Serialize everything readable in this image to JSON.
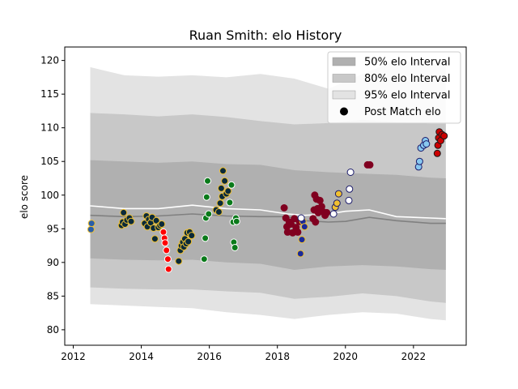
{
  "chart_data": {
    "type": "scatter",
    "title": "Ruan Smith: elo History",
    "xlabel": "",
    "ylabel": "elo score",
    "xlim": [
      2011.75,
      2023.55
    ],
    "ylim": [
      77.7,
      122.0
    ],
    "xticks": [
      2012,
      2014,
      2016,
      2018,
      2020,
      2022
    ],
    "yticks": [
      80,
      85,
      90,
      95,
      100,
      105,
      110,
      115,
      120
    ],
    "grid": false,
    "legend_position": "top-right",
    "legend": [
      {
        "label": "50% elo Interval",
        "kind": "band",
        "color": "#b0b0b0"
      },
      {
        "label": "80% elo Interval",
        "kind": "band",
        "color": "#c8c8c8"
      },
      {
        "label": "95% elo Interval",
        "kind": "band",
        "color": "#e3e3e3"
      },
      {
        "label": "Post Match elo",
        "kind": "marker",
        "color": "#000000"
      }
    ],
    "bands": {
      "x": [
        2012.5,
        2013.5,
        2014.5,
        2015.5,
        2016.5,
        2017.5,
        2018.5,
        2019.5,
        2020.5,
        2021.5,
        2022.5,
        2022.95
      ],
      "p95_upper": [
        119.0,
        117.8,
        117.6,
        117.8,
        117.5,
        118.0,
        117.3,
        115.8,
        118.0,
        120.0,
        119.5,
        119.8
      ],
      "p95_lower": [
        83.8,
        83.6,
        83.4,
        83.2,
        82.6,
        82.2,
        81.6,
        82.2,
        82.6,
        82.4,
        81.6,
        81.4
      ],
      "p80_upper": [
        112.2,
        112.0,
        111.7,
        112.0,
        111.6,
        111.0,
        110.5,
        110.7,
        111.2,
        110.8,
        110.6,
        110.6
      ],
      "p80_lower": [
        86.3,
        86.1,
        86.0,
        86.0,
        85.7,
        85.5,
        84.6,
        84.9,
        85.4,
        85.0,
        84.2,
        84.0
      ],
      "p50_upper": [
        105.2,
        105.0,
        104.8,
        105.0,
        104.6,
        104.5,
        103.7,
        103.4,
        103.2,
        103.0,
        102.6,
        102.5
      ],
      "p50_lower": [
        90.6,
        90.4,
        90.3,
        90.4,
        90.0,
        89.8,
        88.9,
        89.4,
        89.6,
        89.4,
        89.0,
        88.9
      ]
    },
    "median_line": {
      "color": "#808080",
      "x": [
        2012.5,
        2013.5,
        2014.5,
        2015.5,
        2016.5,
        2017.5,
        2018.3,
        2018.8,
        2019.5,
        2020.0,
        2020.7,
        2021.5,
        2022.5,
        2022.95
      ],
      "y": [
        97.0,
        96.8,
        96.9,
        97.2,
        96.9,
        96.8,
        96.8,
        96.2,
        96.0,
        96.1,
        96.7,
        96.2,
        95.8,
        95.8
      ]
    },
    "mean_line": {
      "color": "#ffffff",
      "x": [
        2012.5,
        2013.5,
        2014.5,
        2015.5,
        2016.5,
        2017.5,
        2018.3,
        2018.8,
        2019.5,
        2020.0,
        2020.7,
        2021.5,
        2022.5,
        2022.95
      ],
      "y": [
        98.4,
        98.0,
        98.0,
        98.5,
        98.0,
        97.8,
        97.2,
        97.0,
        97.2,
        97.6,
        97.8,
        96.8,
        96.6,
        96.5
      ]
    },
    "series": [
      {
        "fill": "#2a5ea8",
        "edge": "#f0c030",
        "points": [
          [
            2012.52,
            94.9
          ],
          [
            2012.54,
            95.8
          ]
        ]
      },
      {
        "fill": "#0a2a3a",
        "edge": "#f0c030",
        "points": [
          [
            2013.42,
            95.5
          ],
          [
            2013.45,
            96.0
          ],
          [
            2013.48,
            97.4
          ],
          [
            2013.52,
            95.7
          ],
          [
            2013.58,
            96.3
          ],
          [
            2013.65,
            96.6
          ],
          [
            2013.7,
            96.1
          ],
          [
            2014.1,
            95.8
          ],
          [
            2014.15,
            96.9
          ],
          [
            2014.18,
            95.3
          ],
          [
            2014.22,
            96.4
          ],
          [
            2014.28,
            95.9
          ],
          [
            2014.32,
            96.7
          ],
          [
            2014.36,
            95.1
          ],
          [
            2014.4,
            93.5
          ],
          [
            2014.44,
            96.2
          ],
          [
            2014.5,
            95.2
          ],
          [
            2014.55,
            95.5
          ],
          [
            2014.6,
            95.7
          ]
        ]
      },
      {
        "fill": "#ff0000",
        "edge": "#ffffff",
        "points": [
          [
            2014.65,
            94.5
          ],
          [
            2014.68,
            93.6
          ],
          [
            2014.7,
            92.9
          ],
          [
            2014.74,
            91.8
          ],
          [
            2014.78,
            90.5
          ],
          [
            2014.8,
            89.0
          ]
        ]
      },
      {
        "fill": "#0a2a3a",
        "edge": "#f0c030",
        "points": [
          [
            2015.1,
            90.2
          ],
          [
            2015.15,
            91.8
          ],
          [
            2015.18,
            92.5
          ],
          [
            2015.22,
            93.0
          ],
          [
            2015.25,
            92.3
          ],
          [
            2015.28,
            93.5
          ],
          [
            2015.32,
            92.8
          ],
          [
            2015.35,
            94.4
          ],
          [
            2015.38,
            93.1
          ],
          [
            2015.42,
            94.5
          ],
          [
            2015.48,
            94.0
          ],
          [
            2016.2,
            97.8
          ],
          [
            2016.28,
            97.5
          ],
          [
            2016.32,
            98.8
          ],
          [
            2016.35,
            101.0
          ],
          [
            2016.38,
            99.8
          ],
          [
            2016.4,
            103.6
          ],
          [
            2016.45,
            102.1
          ],
          [
            2016.5,
            100.2
          ],
          [
            2016.55,
            100.6
          ]
        ]
      },
      {
        "fill": "#0a7a1a",
        "edge": "#ffffff",
        "points": [
          [
            2015.85,
            90.5
          ],
          [
            2015.88,
            93.6
          ],
          [
            2015.9,
            96.6
          ],
          [
            2015.92,
            99.7
          ],
          [
            2015.95,
            102.1
          ],
          [
            2015.98,
            97.2
          ],
          [
            2016.6,
            98.9
          ],
          [
            2016.65,
            101.5
          ],
          [
            2016.7,
            96.0
          ],
          [
            2016.72,
            93.0
          ],
          [
            2016.75,
            92.2
          ],
          [
            2016.78,
            96.6
          ],
          [
            2016.8,
            96.1
          ]
        ]
      },
      {
        "fill": "#800020",
        "edge": "#800020",
        "points": [
          [
            2018.2,
            98.1
          ],
          [
            2018.25,
            96.6
          ],
          [
            2018.28,
            95.3
          ],
          [
            2018.3,
            94.5
          ],
          [
            2018.35,
            96.0
          ],
          [
            2018.4,
            95.7
          ],
          [
            2018.45,
            94.4
          ],
          [
            2018.5,
            96.5
          ],
          [
            2018.55,
            95.2
          ],
          [
            2018.6,
            94.5
          ],
          [
            2018.65,
            96.1
          ],
          [
            2019.05,
            96.5
          ],
          [
            2019.08,
            97.8
          ],
          [
            2019.1,
            100.0
          ],
          [
            2019.12,
            96.0
          ],
          [
            2019.15,
            99.4
          ],
          [
            2019.18,
            98.0
          ],
          [
            2019.2,
            97.4
          ],
          [
            2019.25,
            99.2
          ],
          [
            2019.3,
            98.3
          ],
          [
            2019.35,
            97.5
          ],
          [
            2019.4,
            97.0
          ],
          [
            2019.45,
            97.4
          ],
          [
            2020.65,
            104.5
          ],
          [
            2020.72,
            104.5
          ]
        ]
      },
      {
        "fill": "#1a2a9a",
        "edge": "#f0c030",
        "points": [
          [
            2018.68,
            91.3
          ],
          [
            2018.72,
            93.4
          ],
          [
            2018.75,
            96.1
          ],
          [
            2018.8,
            95.3
          ]
        ]
      },
      {
        "fill": "#ffffff",
        "edge": "#1a1a6a",
        "points": [
          [
            2018.7,
            96.6
          ],
          [
            2019.65,
            97.2
          ],
          [
            2020.1,
            99.2
          ],
          [
            2020.12,
            100.9
          ],
          [
            2020.15,
            103.4
          ]
        ]
      },
      {
        "fill": "#f0c030",
        "edge": "#1a1a6a",
        "points": [
          [
            2019.7,
            98.2
          ],
          [
            2019.75,
            98.8
          ],
          [
            2019.8,
            100.2
          ]
        ]
      },
      {
        "fill": "#88c8f0",
        "edge": "#1a1a6a",
        "points": [
          [
            2022.15,
            104.2
          ],
          [
            2022.18,
            105.0
          ],
          [
            2022.22,
            107.0
          ],
          [
            2022.3,
            107.4
          ],
          [
            2022.35,
            108.1
          ],
          [
            2022.38,
            107.6
          ]
        ]
      },
      {
        "fill": "#cc0000",
        "edge": "#1a1a1a",
        "points": [
          [
            2022.7,
            106.2
          ],
          [
            2022.72,
            107.4
          ],
          [
            2022.74,
            108.5
          ],
          [
            2022.76,
            109.4
          ],
          [
            2022.8,
            108.1
          ],
          [
            2022.84,
            109.0
          ],
          [
            2022.9,
            108.8
          ]
        ]
      }
    ]
  }
}
